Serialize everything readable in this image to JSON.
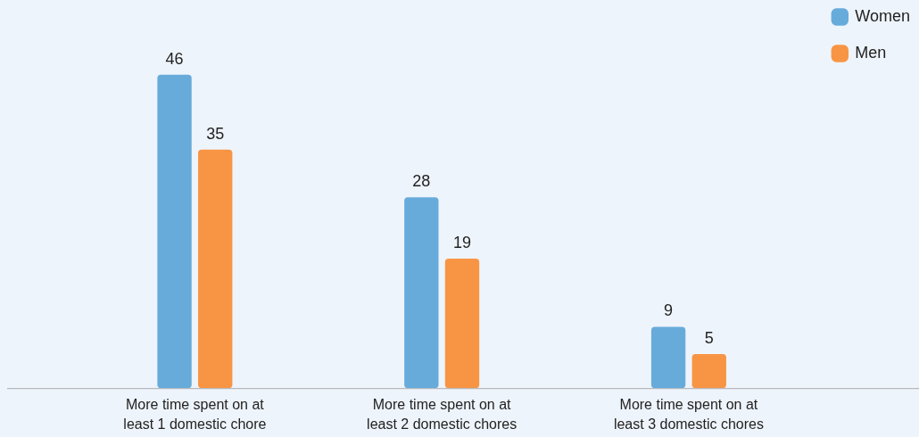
{
  "chart_data": {
    "type": "bar",
    "categories": [
      "More time spent on at least 1 domestic chore",
      "More time spent on at least 2 domestic chores",
      "More time spent on at least 3 domestic chores"
    ],
    "series": [
      {
        "name": "Women",
        "color": "#67abdb",
        "values": [
          46,
          28,
          9
        ]
      },
      {
        "name": "Men",
        "color": "#f89545",
        "values": [
          35,
          19,
          5
        ]
      }
    ],
    "data_labels": true,
    "grid": false,
    "legend": "top right"
  }
}
